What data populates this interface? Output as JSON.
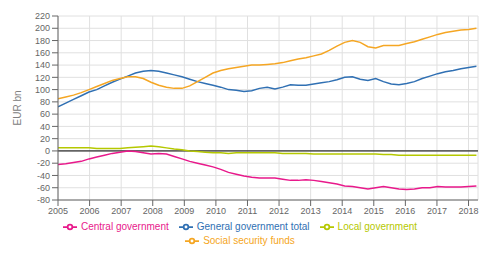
{
  "chart_data": {
    "type": "line",
    "ylabel": "EUR bn",
    "x": [
      2005,
      2005.24537,
      2005.490741,
      2005.736111,
      2005.981481,
      2006.226852,
      2006.472222,
      2006.717593,
      2006.962963,
      2007.208333,
      2007.453704,
      2007.699074,
      2007.944444,
      2008.189815,
      2008.435185,
      2008.680556,
      2008.925926,
      2009.171296,
      2009.416667,
      2009.662037,
      2009.907407,
      2010.152778,
      2010.398148,
      2010.643519,
      2010.888889,
      2011.134259,
      2011.37963,
      2011.625,
      2011.87037,
      2012.115741,
      2012.361111,
      2012.606481,
      2012.851852,
      2013.097222,
      2013.342593,
      2013.587963,
      2013.833333,
      2014.078704,
      2014.324074,
      2014.569444,
      2014.814815,
      2015.060185,
      2015.305556,
      2015.550926,
      2015.796296,
      2016.041667,
      2016.287037,
      2016.532407,
      2016.777778,
      2017.023148,
      2017.268519,
      2017.513889,
      2017.759259,
      2018.00463,
      2018.25
    ],
    "xlim": [
      2005,
      2018.3
    ],
    "xticks": [
      2005,
      2006,
      2007,
      2008,
      2009,
      2010,
      2011,
      2012,
      2013,
      2014,
      2015,
      2016,
      2017,
      2018
    ],
    "ylim": [
      -80,
      220
    ],
    "yticks": [
      -80,
      -60,
      -40,
      -20,
      0,
      20,
      40,
      60,
      80,
      100,
      120,
      140,
      160,
      180,
      200,
      220
    ],
    "grid": true,
    "legend": "bottom",
    "series": [
      {
        "name": "General government total",
        "color": "#3070b3",
        "values": [
          72,
          78,
          84,
          90,
          96,
          100,
          106,
          112,
          117,
          122,
          127,
          130,
          131,
          130,
          127,
          124,
          121,
          117,
          113,
          110,
          107,
          104,
          100,
          99,
          97,
          98,
          102,
          104,
          101,
          104,
          108,
          107,
          107,
          109,
          111,
          113,
          116,
          120,
          121,
          117,
          115,
          118,
          113,
          109,
          108,
          110,
          113,
          118,
          122,
          126,
          129,
          131,
          134,
          136,
          138
        ]
      },
      {
        "name": "Central government",
        "color": "#e8198b",
        "values": [
          -22,
          -21,
          -19,
          -17,
          -13,
          -10,
          -7,
          -4,
          -2,
          0,
          -1,
          -3,
          -5,
          -4,
          -5,
          -9,
          -13,
          -17,
          -20,
          -23,
          -26,
          -30,
          -35,
          -38,
          -41,
          -43,
          -44,
          -44,
          -44,
          -46,
          -48,
          -48,
          -47,
          -48,
          -50,
          -52,
          -54,
          -57,
          -58,
          -60,
          -62,
          -60,
          -58,
          -60,
          -62,
          -63,
          -62,
          -60,
          -60,
          -58,
          -59,
          -59,
          -59,
          -58,
          -57
        ]
      },
      {
        "name": "Local government",
        "color": "#b5c800",
        "values": [
          5,
          5,
          5,
          5,
          5,
          4,
          4,
          4,
          4,
          5,
          6,
          7,
          8,
          7,
          5,
          3,
          2,
          0,
          -1,
          -2,
          -3,
          -3,
          -4,
          -3,
          -3,
          -3,
          -3,
          -3,
          -3,
          -4,
          -4,
          -4,
          -4,
          -5,
          -5,
          -5,
          -5,
          -5,
          -5,
          -5,
          -5,
          -5,
          -6,
          -6,
          -7,
          -7,
          -7,
          -7,
          -7,
          -7,
          -7,
          -7,
          -7,
          -7,
          -7
        ]
      },
      {
        "name": "Social security funds",
        "color": "#f5a623",
        "values": [
          85,
          88,
          91,
          95,
          100,
          105,
          110,
          115,
          118,
          121,
          121,
          118,
          112,
          107,
          104,
          102,
          102,
          106,
          113,
          120,
          127,
          131,
          134,
          136,
          138,
          140,
          140,
          141,
          142,
          144,
          147,
          150,
          152,
          155,
          158,
          164,
          171,
          177,
          180,
          177,
          170,
          168,
          172,
          172,
          172,
          175,
          178,
          182,
          186,
          190,
          193,
          195,
          197,
          198,
          200
        ]
      }
    ]
  }
}
